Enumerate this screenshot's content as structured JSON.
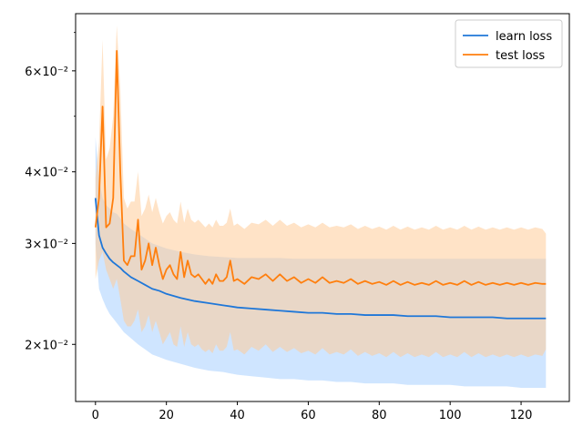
{
  "chart_data": {
    "type": "line",
    "title": "",
    "xlabel": "",
    "ylabel": "",
    "xlim": [
      -5.6,
      133.6
    ],
    "ylim": [
      0.0159,
      0.0755
    ],
    "yscale": "log",
    "x_ticks": [
      0,
      20,
      40,
      60,
      80,
      100,
      120
    ],
    "x_tick_labels": [
      "0",
      "20",
      "40",
      "60",
      "80",
      "100",
      "120"
    ],
    "y_ticks": [
      0.02,
      0.03,
      0.04,
      0.06
    ],
    "y_tick_labels": [
      "2×10⁻²",
      "3×10⁻²",
      "4×10⁻²",
      "6×10⁻²"
    ],
    "y_minor_ticks": [
      0.05,
      0.07
    ],
    "grid": false,
    "legend_position": "top-right",
    "series": [
      {
        "name": "learn loss",
        "color": "#1f77d8",
        "band_color": "#a8d0ff",
        "x": [
          0,
          1,
          2,
          3,
          4,
          5,
          6,
          7,
          8,
          10,
          12,
          14,
          16,
          18,
          20,
          24,
          28,
          32,
          36,
          40,
          44,
          48,
          52,
          56,
          60,
          64,
          68,
          72,
          76,
          80,
          84,
          88,
          92,
          96,
          100,
          104,
          108,
          112,
          116,
          120,
          124,
          127
        ],
        "values": [
          0.036,
          0.031,
          0.0295,
          0.0288,
          0.0282,
          0.0278,
          0.0275,
          0.0272,
          0.0268,
          0.0262,
          0.0258,
          0.0254,
          0.025,
          0.0248,
          0.0245,
          0.0241,
          0.0238,
          0.0236,
          0.0234,
          0.0232,
          0.0231,
          0.023,
          0.0229,
          0.0228,
          0.0227,
          0.0227,
          0.0226,
          0.0226,
          0.0225,
          0.0225,
          0.0225,
          0.0224,
          0.0224,
          0.0224,
          0.0223,
          0.0223,
          0.0223,
          0.0223,
          0.0222,
          0.0222,
          0.0222,
          0.0222
        ],
        "lower": [
          0.03,
          0.025,
          0.024,
          0.0232,
          0.0226,
          0.0222,
          0.0218,
          0.0214,
          0.021,
          0.0205,
          0.02,
          0.0196,
          0.0192,
          0.019,
          0.0188,
          0.0185,
          0.0182,
          0.018,
          0.0179,
          0.0177,
          0.0176,
          0.0175,
          0.0174,
          0.0174,
          0.0173,
          0.0173,
          0.0172,
          0.0172,
          0.0171,
          0.0171,
          0.0171,
          0.017,
          0.017,
          0.017,
          0.017,
          0.0169,
          0.0169,
          0.0169,
          0.0169,
          0.0168,
          0.0168,
          0.0168
        ],
        "upper": [
          0.046,
          0.039,
          0.036,
          0.035,
          0.0345,
          0.034,
          0.0338,
          0.0332,
          0.0325,
          0.0318,
          0.0312,
          0.0306,
          0.03,
          0.0297,
          0.0294,
          0.029,
          0.0287,
          0.0285,
          0.0284,
          0.0283,
          0.0283,
          0.0283,
          0.0283,
          0.0282,
          0.0282,
          0.0282,
          0.0282,
          0.0282,
          0.0282,
          0.0282,
          0.0282,
          0.0282,
          0.0282,
          0.0282,
          0.0282,
          0.0282,
          0.0282,
          0.0282,
          0.0282,
          0.0282,
          0.0282,
          0.0282
        ]
      },
      {
        "name": "test loss",
        "color": "#ff7f0e",
        "band_color": "#ffcc99",
        "x": [
          0,
          1,
          2,
          3,
          4,
          5,
          6,
          7,
          8,
          9,
          10,
          11,
          12,
          13,
          14,
          15,
          16,
          17,
          18,
          19,
          20,
          21,
          22,
          23,
          24,
          25,
          26,
          27,
          28,
          29,
          30,
          31,
          32,
          33,
          34,
          35,
          36,
          37,
          38,
          39,
          40,
          42,
          44,
          46,
          48,
          50,
          52,
          54,
          56,
          58,
          60,
          62,
          64,
          66,
          68,
          70,
          72,
          74,
          76,
          78,
          80,
          82,
          84,
          86,
          88,
          90,
          92,
          94,
          96,
          98,
          100,
          102,
          104,
          106,
          108,
          110,
          112,
          114,
          116,
          118,
          120,
          122,
          124,
          126,
          127
        ],
        "values": [
          0.032,
          0.036,
          0.052,
          0.032,
          0.0325,
          0.036,
          0.065,
          0.04,
          0.028,
          0.0275,
          0.0285,
          0.0285,
          0.033,
          0.027,
          0.028,
          0.03,
          0.0275,
          0.0295,
          0.0275,
          0.026,
          0.027,
          0.0275,
          0.0265,
          0.026,
          0.029,
          0.0262,
          0.028,
          0.0265,
          0.0262,
          0.0265,
          0.026,
          0.0255,
          0.026,
          0.0255,
          0.0265,
          0.0258,
          0.0258,
          0.0262,
          0.028,
          0.0258,
          0.026,
          0.0255,
          0.0262,
          0.026,
          0.0265,
          0.0258,
          0.0265,
          0.0258,
          0.0262,
          0.0256,
          0.026,
          0.0256,
          0.0262,
          0.0256,
          0.0258,
          0.0256,
          0.026,
          0.0255,
          0.0258,
          0.0255,
          0.0257,
          0.0254,
          0.0258,
          0.0254,
          0.0257,
          0.0254,
          0.0256,
          0.0254,
          0.0258,
          0.0254,
          0.0256,
          0.0254,
          0.0258,
          0.0254,
          0.0257,
          0.0254,
          0.0256,
          0.0254,
          0.0256,
          0.0254,
          0.0256,
          0.0254,
          0.0256,
          0.0255,
          0.0255
        ],
        "lower": [
          0.026,
          0.028,
          0.029,
          0.027,
          0.026,
          0.025,
          0.026,
          0.024,
          0.022,
          0.0215,
          0.0215,
          0.022,
          0.023,
          0.021,
          0.0215,
          0.0225,
          0.021,
          0.022,
          0.021,
          0.02,
          0.0205,
          0.021,
          0.02,
          0.0198,
          0.0215,
          0.0198,
          0.021,
          0.02,
          0.0198,
          0.02,
          0.0196,
          0.0194,
          0.0196,
          0.0193,
          0.02,
          0.0195,
          0.0195,
          0.0198,
          0.021,
          0.0195,
          0.0196,
          0.0192,
          0.0198,
          0.0195,
          0.02,
          0.0194,
          0.0198,
          0.0194,
          0.0197,
          0.0193,
          0.0195,
          0.0192,
          0.0197,
          0.0192,
          0.0194,
          0.0192,
          0.0196,
          0.0191,
          0.0194,
          0.0191,
          0.0193,
          0.019,
          0.0194,
          0.019,
          0.0193,
          0.019,
          0.0192,
          0.019,
          0.0194,
          0.019,
          0.0192,
          0.019,
          0.0194,
          0.019,
          0.0193,
          0.019,
          0.0192,
          0.019,
          0.0192,
          0.019,
          0.0192,
          0.019,
          0.0192,
          0.0191,
          0.0196
        ],
        "upper": [
          0.039,
          0.045,
          0.068,
          0.042,
          0.044,
          0.05,
          0.072,
          0.056,
          0.036,
          0.0345,
          0.0355,
          0.0355,
          0.04,
          0.0335,
          0.0345,
          0.0365,
          0.034,
          0.036,
          0.034,
          0.0325,
          0.0335,
          0.034,
          0.033,
          0.0325,
          0.0355,
          0.0326,
          0.0345,
          0.033,
          0.0326,
          0.033,
          0.0325,
          0.032,
          0.0325,
          0.032,
          0.033,
          0.0322,
          0.0322,
          0.0326,
          0.0345,
          0.0322,
          0.0325,
          0.0318,
          0.0326,
          0.0324,
          0.033,
          0.0322,
          0.033,
          0.0322,
          0.0326,
          0.032,
          0.0324,
          0.032,
          0.0326,
          0.032,
          0.0322,
          0.032,
          0.0324,
          0.0318,
          0.0322,
          0.0318,
          0.0321,
          0.0317,
          0.0322,
          0.0317,
          0.0321,
          0.0317,
          0.032,
          0.0317,
          0.0322,
          0.0317,
          0.032,
          0.0317,
          0.0322,
          0.0317,
          0.0321,
          0.0317,
          0.032,
          0.0317,
          0.032,
          0.0317,
          0.032,
          0.0317,
          0.032,
          0.0318,
          0.0312
        ]
      }
    ]
  }
}
